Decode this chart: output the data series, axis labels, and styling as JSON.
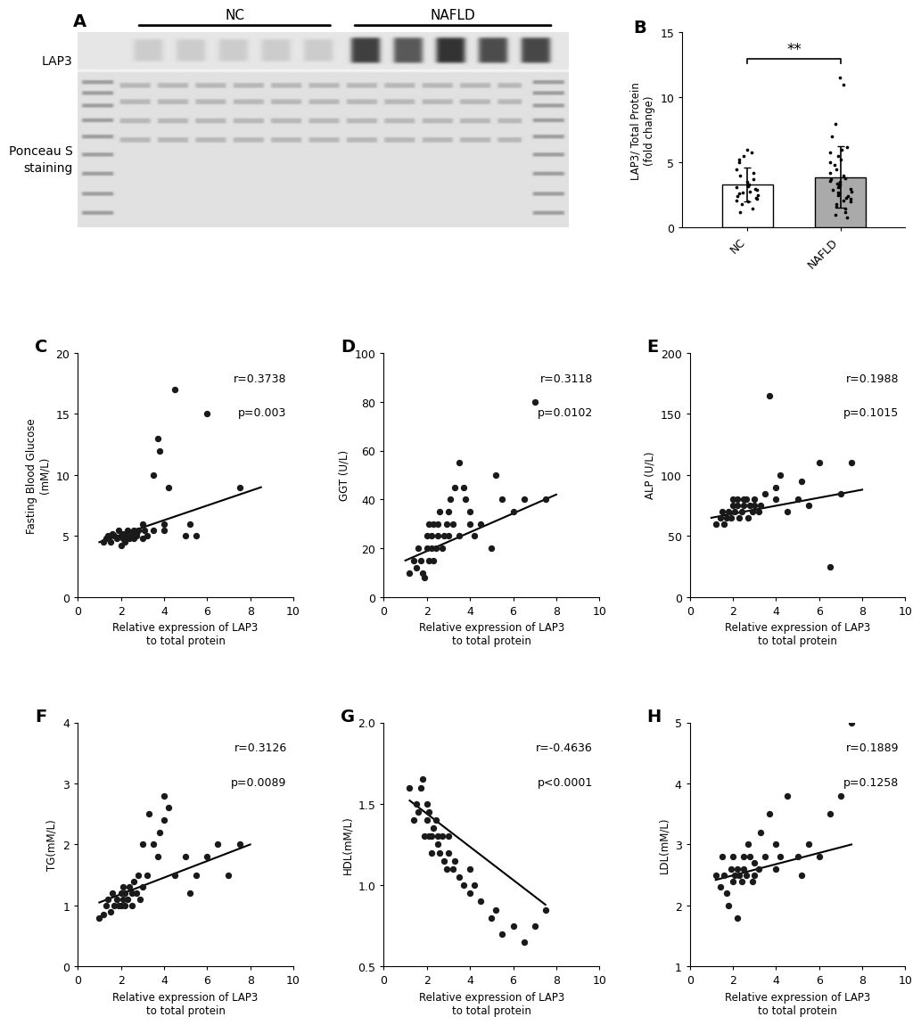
{
  "panel_B": {
    "NC_points": [
      1.2,
      1.5,
      1.8,
      2.0,
      2.1,
      2.2,
      2.3,
      2.4,
      2.5,
      2.6,
      2.7,
      2.8,
      2.9,
      3.0,
      3.1,
      3.2,
      3.3,
      3.5,
      3.7,
      4.0,
      4.2,
      4.5,
      5.0,
      5.2,
      5.5,
      5.8,
      6.0
    ],
    "NAFLD_points": [
      0.8,
      1.0,
      1.2,
      1.5,
      1.6,
      1.8,
      2.0,
      2.1,
      2.2,
      2.3,
      2.4,
      2.5,
      2.6,
      2.7,
      2.8,
      2.9,
      3.0,
      3.1,
      3.2,
      3.3,
      3.4,
      3.5,
      3.6,
      3.7,
      3.8,
      4.0,
      4.2,
      4.5,
      4.8,
      5.0,
      5.2,
      5.5,
      5.8,
      6.0,
      6.2,
      7.0,
      8.0,
      11.0,
      11.5
    ],
    "ylim": [
      0,
      15
    ],
    "yticks": [
      0,
      5,
      10,
      15
    ],
    "ylabel": "LAP3/ Total Protein\n(fold change)",
    "significance": "**"
  },
  "panel_C": {
    "xlabel": "Relative expression of LAP3\nto total protein",
    "ylabel": "Fasting Blood Glucose\n(mM/L)",
    "r": "r=0.3738",
    "p": "p=0.003",
    "xlim": [
      0,
      10
    ],
    "ylim": [
      0,
      20
    ],
    "xticks": [
      0,
      2,
      4,
      6,
      8,
      10
    ],
    "yticks": [
      0,
      5,
      10,
      15,
      20
    ],
    "x": [
      1.2,
      1.3,
      1.4,
      1.5,
      1.6,
      1.7,
      1.8,
      1.9,
      2.0,
      2.0,
      2.1,
      2.1,
      2.2,
      2.2,
      2.3,
      2.3,
      2.4,
      2.4,
      2.5,
      2.5,
      2.6,
      2.6,
      2.7,
      2.7,
      2.8,
      3.0,
      3.0,
      3.1,
      3.2,
      3.5,
      3.5,
      3.7,
      3.8,
      4.0,
      4.0,
      4.2,
      4.5,
      5.0,
      5.2,
      5.5,
      6.0,
      7.5
    ],
    "y": [
      4.5,
      4.8,
      5.0,
      4.5,
      5.2,
      5.0,
      4.8,
      5.5,
      4.2,
      5.0,
      4.8,
      5.2,
      5.0,
      4.5,
      4.8,
      5.5,
      5.0,
      4.8,
      5.2,
      5.0,
      5.5,
      4.8,
      5.0,
      5.2,
      5.5,
      4.8,
      6.0,
      5.5,
      5.0,
      5.5,
      10.0,
      13.0,
      12.0,
      5.5,
      6.0,
      9.0,
      17.0,
      5.0,
      6.0,
      5.0,
      15.0,
      9.0
    ],
    "line_x": [
      1.0,
      8.5
    ],
    "line_y": [
      4.5,
      9.0
    ]
  },
  "panel_D": {
    "xlabel": "Relative expression of LAP3\nto total protein",
    "ylabel": "GGT (U/L)",
    "r": "r=0.3118",
    "p": "p=0.0102",
    "xlim": [
      0,
      10
    ],
    "ylim": [
      0,
      100
    ],
    "xticks": [
      0,
      2,
      4,
      6,
      8,
      10
    ],
    "yticks": [
      0,
      20,
      40,
      60,
      80,
      100
    ],
    "x": [
      1.2,
      1.4,
      1.5,
      1.6,
      1.7,
      1.8,
      1.9,
      2.0,
      2.0,
      2.1,
      2.1,
      2.2,
      2.2,
      2.3,
      2.3,
      2.4,
      2.5,
      2.5,
      2.6,
      2.7,
      2.8,
      2.9,
      3.0,
      3.0,
      3.1,
      3.2,
      3.3,
      3.5,
      3.5,
      3.7,
      3.8,
      4.0,
      4.0,
      4.2,
      4.5,
      5.0,
      5.2,
      5.5,
      6.0,
      6.5,
      7.0,
      7.5
    ],
    "y": [
      10,
      15,
      12,
      20,
      15,
      10,
      8,
      25,
      20,
      15,
      30,
      20,
      25,
      30,
      15,
      20,
      25,
      30,
      35,
      20,
      25,
      30,
      25,
      35,
      40,
      30,
      45,
      25,
      55,
      45,
      40,
      30,
      35,
      25,
      30,
      20,
      50,
      40,
      35,
      40,
      80,
      40
    ],
    "line_x": [
      1.0,
      8.0
    ],
    "line_y": [
      15,
      42
    ]
  },
  "panel_E": {
    "xlabel": "Relative expression of LAP3\nto total protein",
    "ylabel": "ALP (U/L)",
    "r": "r=0.1988",
    "p": "p=0.1015",
    "xlim": [
      0,
      10
    ],
    "ylim": [
      0,
      200
    ],
    "xticks": [
      0,
      2,
      4,
      6,
      8,
      10
    ],
    "yticks": [
      0,
      50,
      100,
      150,
      200
    ],
    "x": [
      1.2,
      1.4,
      1.5,
      1.6,
      1.7,
      1.8,
      1.9,
      2.0,
      2.0,
      2.1,
      2.2,
      2.2,
      2.3,
      2.4,
      2.5,
      2.5,
      2.6,
      2.7,
      2.8,
      2.9,
      3.0,
      3.0,
      3.2,
      3.3,
      3.5,
      3.7,
      4.0,
      4.0,
      4.2,
      4.5,
      5.0,
      5.2,
      5.5,
      6.0,
      6.5,
      7.0,
      7.5
    ],
    "y": [
      60,
      65,
      70,
      60,
      65,
      70,
      65,
      75,
      80,
      70,
      75,
      80,
      65,
      70,
      80,
      75,
      80,
      65,
      75,
      70,
      75,
      80,
      70,
      75,
      85,
      165,
      80,
      90,
      100,
      70,
      80,
      95,
      75,
      110,
      25,
      85,
      110
    ],
    "line_x": [
      1.0,
      8.0
    ],
    "line_y": [
      65,
      88
    ]
  },
  "panel_F": {
    "xlabel": "Relative expression of LAP3\nto total protein",
    "ylabel": "TG(mM/L)",
    "r": "r=0.3126",
    "p": "p=0.0089",
    "xlim": [
      0,
      10
    ],
    "ylim": [
      0,
      4
    ],
    "xticks": [
      0,
      2,
      4,
      6,
      8,
      10
    ],
    "yticks": [
      0,
      1,
      2,
      3,
      4
    ],
    "x": [
      1.0,
      1.2,
      1.3,
      1.4,
      1.5,
      1.6,
      1.7,
      1.8,
      1.9,
      2.0,
      2.0,
      2.1,
      2.1,
      2.2,
      2.2,
      2.3,
      2.4,
      2.5,
      2.5,
      2.6,
      2.7,
      2.8,
      2.9,
      3.0,
      3.0,
      3.2,
      3.3,
      3.5,
      3.7,
      3.8,
      4.0,
      4.0,
      4.2,
      4.5,
      5.0,
      5.2,
      5.5,
      6.0,
      6.5,
      7.0,
      7.5
    ],
    "y": [
      0.8,
      0.85,
      1.0,
      1.1,
      0.9,
      1.2,
      1.0,
      1.1,
      1.0,
      1.2,
      1.0,
      1.1,
      1.3,
      1.0,
      1.2,
      1.1,
      1.3,
      1.2,
      1.0,
      1.4,
      1.2,
      1.5,
      1.1,
      1.3,
      2.0,
      1.5,
      2.5,
      2.0,
      1.8,
      2.2,
      2.4,
      2.8,
      2.6,
      1.5,
      1.8,
      1.2,
      1.5,
      1.8,
      2.0,
      1.5,
      2.0
    ],
    "line_x": [
      1.0,
      8.0
    ],
    "line_y": [
      1.05,
      2.0
    ]
  },
  "panel_G": {
    "xlabel": "Relative expression of LAP3\nto total protein",
    "ylabel": "HDL(mM/L)",
    "r": "r=-0.4636",
    "p": "p<0.0001",
    "xlim": [
      0,
      10
    ],
    "ylim": [
      0.5,
      2.0
    ],
    "xticks": [
      0,
      2,
      4,
      6,
      8,
      10
    ],
    "yticks": [
      0.5,
      1.0,
      1.5,
      2.0
    ],
    "x": [
      1.2,
      1.4,
      1.5,
      1.6,
      1.7,
      1.8,
      1.9,
      2.0,
      2.0,
      2.1,
      2.1,
      2.2,
      2.2,
      2.3,
      2.4,
      2.5,
      2.5,
      2.6,
      2.7,
      2.8,
      2.9,
      3.0,
      3.0,
      3.2,
      3.3,
      3.5,
      3.7,
      4.0,
      4.0,
      4.2,
      4.5,
      5.0,
      5.2,
      5.5,
      6.0,
      6.5,
      7.0,
      7.5
    ],
    "y": [
      1.6,
      1.4,
      1.5,
      1.45,
      1.6,
      1.65,
      1.3,
      1.4,
      1.5,
      1.3,
      1.45,
      1.2,
      1.3,
      1.35,
      1.4,
      1.25,
      1.3,
      1.2,
      1.3,
      1.15,
      1.1,
      1.3,
      1.2,
      1.1,
      1.15,
      1.05,
      1.0,
      1.1,
      0.95,
      1.0,
      0.9,
      0.8,
      0.85,
      0.7,
      0.75,
      0.65,
      0.75,
      0.85
    ],
    "line_x": [
      1.2,
      7.5
    ],
    "line_y": [
      1.52,
      0.88
    ]
  },
  "panel_H": {
    "xlabel": "Relative expression of LAP3\nto total protein",
    "ylabel": "LDL(mM/L)",
    "r": "r=0.1889",
    "p": "p=0.1258",
    "xlim": [
      0,
      10
    ],
    "ylim": [
      1,
      5
    ],
    "xticks": [
      0,
      2,
      4,
      6,
      8,
      10
    ],
    "yticks": [
      1,
      2,
      3,
      4,
      5
    ],
    "x": [
      1.2,
      1.4,
      1.5,
      1.6,
      1.7,
      1.8,
      1.9,
      2.0,
      2.0,
      2.1,
      2.2,
      2.2,
      2.3,
      2.4,
      2.5,
      2.5,
      2.6,
      2.7,
      2.8,
      2.9,
      3.0,
      3.0,
      3.2,
      3.3,
      3.5,
      3.7,
      4.0,
      4.0,
      4.2,
      4.5,
      5.0,
      5.2,
      5.5,
      6.0,
      6.5,
      7.0,
      7.5
    ],
    "y": [
      2.5,
      2.3,
      2.8,
      2.5,
      2.2,
      2.0,
      2.6,
      2.4,
      2.8,
      2.5,
      2.6,
      1.8,
      2.5,
      2.4,
      2.8,
      2.6,
      2.5,
      3.0,
      2.8,
      2.4,
      2.7,
      2.5,
      2.6,
      3.2,
      2.8,
      3.5,
      2.6,
      3.0,
      2.8,
      3.8,
      2.8,
      2.5,
      3.0,
      2.8,
      3.5,
      3.8,
      5.0
    ],
    "line_x": [
      1.2,
      7.5
    ],
    "line_y": [
      2.42,
      3.0
    ]
  },
  "bg_color": "#ffffff",
  "dot_color": "#1a1a1a",
  "line_color": "#000000",
  "font_color": "#000000",
  "label_fontsize": 8.5,
  "tick_fontsize": 9,
  "annot_fontsize": 9,
  "panel_label_fontsize": 14
}
